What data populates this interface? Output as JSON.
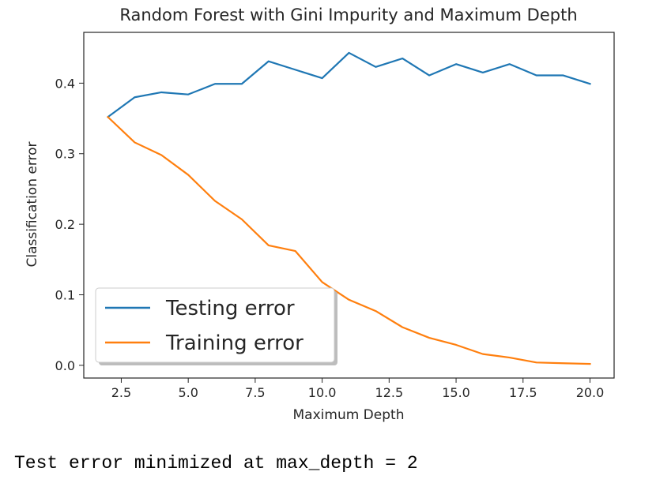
{
  "chart_data": {
    "type": "line",
    "title": "Random Forest with Gini Impurity and Maximum Depth",
    "xlabel": "Maximum Depth",
    "ylabel": "Classification error",
    "xlim": [
      1.1,
      20.9
    ],
    "ylim": [
      -0.018,
      0.472
    ],
    "xticks": [
      2.5,
      5.0,
      7.5,
      10.0,
      12.5,
      15.0,
      17.5,
      20.0
    ],
    "xtick_labels": [
      "2.5",
      "5.0",
      "7.5",
      "10.0",
      "12.5",
      "15.0",
      "17.5",
      "20.0"
    ],
    "yticks": [
      0.0,
      0.1,
      0.2,
      0.3,
      0.4
    ],
    "ytick_labels": [
      "0.0",
      "0.1",
      "0.2",
      "0.3",
      "0.4"
    ],
    "grid": false,
    "legend_position": "bottom-left",
    "x": [
      2,
      3,
      4,
      5,
      6,
      7,
      8,
      9,
      10,
      11,
      12,
      13,
      14,
      15,
      16,
      17,
      18,
      19,
      20
    ],
    "series": [
      {
        "name": "Testing error",
        "color": "#1f77b4",
        "values": [
          0.352,
          0.38,
          0.387,
          0.384,
          0.399,
          0.399,
          0.431,
          0.419,
          0.407,
          0.443,
          0.423,
          0.435,
          0.411,
          0.427,
          0.415,
          0.427,
          0.411,
          0.411,
          0.399
        ]
      },
      {
        "name": "Training error",
        "color": "#ff7f0e",
        "values": [
          0.352,
          0.316,
          0.298,
          0.27,
          0.233,
          0.207,
          0.17,
          0.162,
          0.118,
          0.093,
          0.077,
          0.054,
          0.039,
          0.029,
          0.016,
          0.011,
          0.004,
          0.003,
          0.002
        ]
      }
    ]
  },
  "output": {
    "text": "Test error minimized at max_depth = 2"
  }
}
